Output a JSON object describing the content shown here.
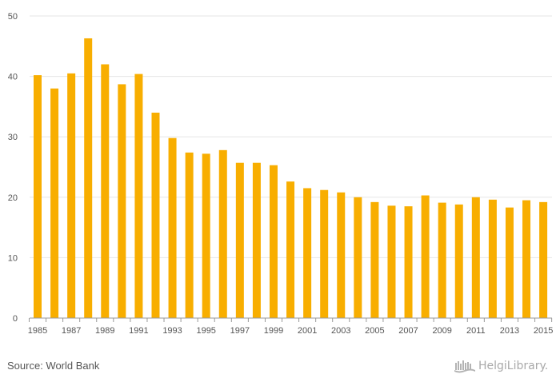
{
  "colors": {
    "bar": "#F8AE00",
    "grid": "#e6e6e6",
    "axis": "#999999",
    "text": "#555555"
  },
  "source_text": "Source: World Bank",
  "brand_text": "HelgiLibrary.",
  "brand_icon": "library-logo-icon",
  "chart_data": {
    "type": "bar",
    "categories": [
      "1985",
      "1986",
      "1987",
      "1988",
      "1989",
      "1990",
      "1991",
      "1992",
      "1993",
      "1994",
      "1995",
      "1996",
      "1997",
      "1998",
      "1999",
      "2000",
      "2001",
      "2002",
      "2003",
      "2004",
      "2005",
      "2006",
      "2007",
      "2008",
      "2009",
      "2010",
      "2011",
      "2012",
      "2013",
      "2014",
      "2015"
    ],
    "values": [
      40.2,
      38.0,
      40.5,
      46.3,
      42.0,
      38.7,
      40.4,
      34.0,
      29.8,
      27.4,
      27.2,
      27.8,
      25.7,
      25.7,
      25.3,
      22.6,
      21.5,
      21.2,
      20.8,
      20.0,
      19.2,
      18.6,
      18.5,
      20.3,
      19.1,
      18.8,
      20.0,
      19.6,
      18.3,
      19.5,
      19.2
    ],
    "x_tick_labels": [
      "1985",
      "1987",
      "1989",
      "1991",
      "1993",
      "1995",
      "1997",
      "1999",
      "2001",
      "2003",
      "2005",
      "2007",
      "2009",
      "2011",
      "2013",
      "2015"
    ],
    "y_ticks": [
      0,
      10,
      20,
      30,
      40,
      50
    ],
    "ylim": [
      0,
      50
    ],
    "title": "",
    "xlabel": "",
    "ylabel": "",
    "grid": true,
    "legend": "none"
  }
}
